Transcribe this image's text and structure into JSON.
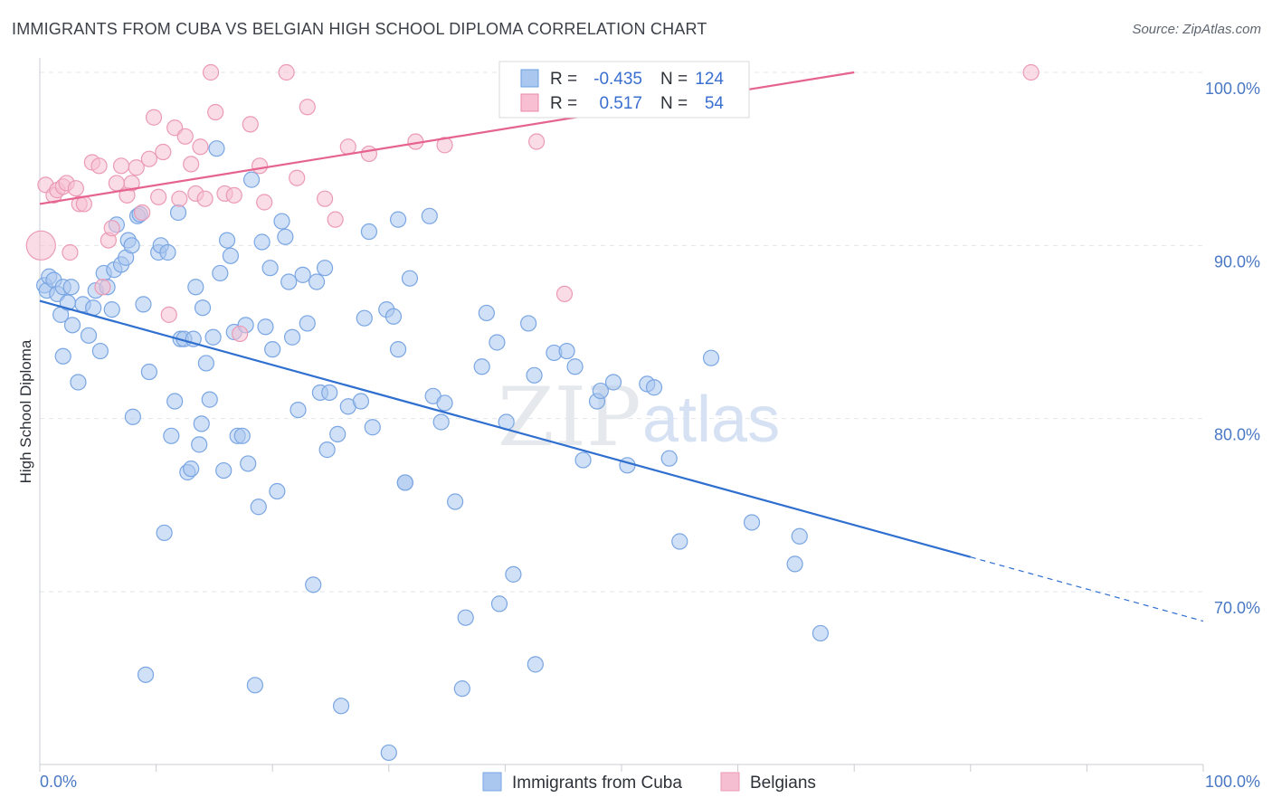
{
  "title": "IMMIGRANTS FROM CUBA VS BELGIAN HIGH SCHOOL DIPLOMA CORRELATION CHART",
  "source": "Source: ZipAtlas.com",
  "watermark": {
    "part1": "ZIP",
    "part2": "atlas"
  },
  "legend": {
    "r_label": "R =",
    "n_label": "N =",
    "rows": [
      {
        "r": "-0.435",
        "n": "124",
        "color": "#a9c7ef",
        "stroke": "#6a9fe0"
      },
      {
        "r": "0.517",
        "n": "54",
        "color": "#f7bfd1",
        "stroke": "#ea8aab"
      }
    ]
  },
  "bottom_legend": [
    "Immigrants from Cuba",
    "Belgians"
  ],
  "colors": {
    "blue": "#a9c7ef",
    "blue_stroke": "#7aa6e3",
    "blue_line": "#2f6fcf",
    "pink": "#f6bfd1",
    "pink_stroke": "#eb9ab6",
    "pink_line": "#e5638e",
    "grid": "#e3e6ea",
    "axis_label": "#4a78c4"
  },
  "chart_data": {
    "type": "scatter",
    "title": "IMMIGRANTS FROM CUBA VS BELGIAN HIGH SCHOOL DIPLOMA CORRELATION CHART",
    "xlabel": "",
    "ylabel": "High School Diploma",
    "xlim": [
      0,
      100
    ],
    "ylim": [
      60,
      102
    ],
    "x_ticks": [
      "0.0%",
      "100.0%"
    ],
    "y_ticks": [
      {
        "value": 100,
        "label": "100.0%"
      },
      {
        "value": 90,
        "label": "90.0%"
      },
      {
        "value": 80,
        "label": "80.0%"
      },
      {
        "value": 70,
        "label": "70.0%"
      }
    ],
    "grid": true,
    "legend_position": "top-center",
    "series": [
      {
        "name": "Immigrants from Cuba",
        "trend": {
          "x0": 0,
          "y0": 86.8,
          "x1": 80,
          "y1": 72.0,
          "dash_to_x": 100,
          "dash_to_y": 68.3
        },
        "points": [
          [
            0.4,
            87.7
          ],
          [
            0.6,
            87.4
          ],
          [
            0.8,
            88.2
          ],
          [
            1.2,
            88.0
          ],
          [
            1.5,
            87.2
          ],
          [
            1.8,
            86.0
          ],
          [
            2.0,
            87.6
          ],
          [
            2.4,
            86.7
          ],
          [
            2.8,
            85.4
          ],
          [
            2.7,
            87.6
          ],
          [
            3.3,
            82.1
          ],
          [
            3.7,
            86.6
          ],
          [
            4.2,
            84.8
          ],
          [
            4.6,
            86.4
          ],
          [
            4.8,
            87.4
          ],
          [
            5.2,
            83.9
          ],
          [
            5.5,
            88.4
          ],
          [
            5.8,
            87.6
          ],
          [
            6.2,
            86.3
          ],
          [
            6.6,
            91.2
          ],
          [
            6.4,
            88.6
          ],
          [
            7.0,
            88.9
          ],
          [
            7.4,
            89.3
          ],
          [
            7.6,
            90.3
          ],
          [
            8.0,
            80.1
          ],
          [
            7.9,
            90.0
          ],
          [
            8.4,
            91.7
          ],
          [
            8.9,
            86.6
          ],
          [
            8.6,
            91.8
          ],
          [
            9.4,
            82.7
          ],
          [
            10.2,
            89.6
          ],
          [
            10.4,
            90.0
          ],
          [
            10.7,
            73.4
          ],
          [
            11.0,
            89.6
          ],
          [
            11.3,
            79.0
          ],
          [
            11.6,
            81.0
          ],
          [
            11.9,
            91.9
          ],
          [
            12.1,
            84.6
          ],
          [
            12.4,
            84.6
          ],
          [
            12.7,
            76.9
          ],
          [
            13.0,
            77.1
          ],
          [
            13.2,
            84.6
          ],
          [
            13.4,
            87.6
          ],
          [
            13.7,
            78.5
          ],
          [
            14.0,
            86.4
          ],
          [
            14.3,
            83.2
          ],
          [
            14.6,
            81.1
          ],
          [
            14.9,
            84.7
          ],
          [
            9.1,
            65.2
          ],
          [
            15.2,
            95.6
          ],
          [
            15.5,
            88.4
          ],
          [
            15.8,
            77.0
          ],
          [
            16.1,
            90.3
          ],
          [
            16.4,
            89.4
          ],
          [
            16.7,
            85.0
          ],
          [
            17.0,
            79.0
          ],
          [
            17.4,
            79.0
          ],
          [
            17.7,
            85.4
          ],
          [
            17.9,
            77.4
          ],
          [
            18.2,
            93.8
          ],
          [
            18.5,
            64.6
          ],
          [
            18.8,
            74.9
          ],
          [
            19.1,
            90.2
          ],
          [
            19.4,
            85.3
          ],
          [
            19.8,
            88.7
          ],
          [
            20.0,
            84.0
          ],
          [
            20.4,
            75.8
          ],
          [
            20.8,
            91.4
          ],
          [
            21.1,
            90.5
          ],
          [
            21.4,
            87.9
          ],
          [
            21.7,
            84.7
          ],
          [
            22.2,
            80.5
          ],
          [
            22.6,
            88.3
          ],
          [
            23.0,
            85.5
          ],
          [
            23.5,
            70.4
          ],
          [
            23.8,
            87.9
          ],
          [
            24.1,
            81.5
          ],
          [
            24.5,
            88.7
          ],
          [
            24.7,
            78.2
          ],
          [
            24.9,
            81.5
          ],
          [
            25.6,
            79.1
          ],
          [
            25.9,
            63.4
          ],
          [
            26.5,
            80.7
          ],
          [
            27.6,
            81.0
          ],
          [
            27.9,
            85.8
          ],
          [
            28.3,
            90.8
          ],
          [
            28.6,
            79.5
          ],
          [
            29.8,
            86.3
          ],
          [
            30.0,
            60.7
          ],
          [
            30.4,
            85.9
          ],
          [
            30.8,
            84.0
          ],
          [
            30.8,
            91.5
          ],
          [
            31.4,
            76.3
          ],
          [
            31.8,
            88.1
          ],
          [
            33.5,
            91.7
          ],
          [
            33.8,
            81.3
          ],
          [
            34.5,
            79.8
          ],
          [
            34.8,
            80.9
          ],
          [
            35.7,
            75.2
          ],
          [
            36.3,
            64.4
          ],
          [
            36.6,
            68.5
          ],
          [
            38.0,
            83.0
          ],
          [
            38.4,
            86.1
          ],
          [
            39.3,
            84.4
          ],
          [
            39.5,
            69.3
          ],
          [
            40.1,
            79.8
          ],
          [
            40.7,
            71.0
          ],
          [
            42.0,
            85.5
          ],
          [
            42.5,
            82.5
          ],
          [
            42.6,
            65.8
          ],
          [
            44.2,
            83.8
          ],
          [
            45.3,
            83.9
          ],
          [
            46.0,
            83.0
          ],
          [
            46.7,
            77.6
          ],
          [
            47.9,
            81.0
          ],
          [
            48.2,
            81.6
          ],
          [
            49.3,
            82.1
          ],
          [
            50.5,
            77.3
          ],
          [
            52.2,
            82.0
          ],
          [
            52.8,
            81.8
          ],
          [
            54.1,
            77.7
          ],
          [
            55.0,
            72.9
          ],
          [
            57.7,
            83.5
          ],
          [
            61.2,
            74.0
          ],
          [
            64.9,
            71.6
          ],
          [
            65.3,
            73.2
          ],
          [
            67.1,
            67.6
          ],
          [
            31.4,
            76.3
          ],
          [
            13.9,
            79.7
          ],
          [
            2.0,
            83.6
          ]
        ]
      },
      {
        "name": "Belgians",
        "trend": {
          "x0": 0,
          "y0": 92.4,
          "x1": 70,
          "y1": 100.0
        },
        "points": [
          [
            0.1,
            90.0
          ],
          [
            0.5,
            93.5
          ],
          [
            1.2,
            92.9
          ],
          [
            1.5,
            93.2
          ],
          [
            2.0,
            93.4
          ],
          [
            2.3,
            93.6
          ],
          [
            2.6,
            89.6
          ],
          [
            3.1,
            93.3
          ],
          [
            3.4,
            92.4
          ],
          [
            3.8,
            92.4
          ],
          [
            4.5,
            94.8
          ],
          [
            5.1,
            94.6
          ],
          [
            5.4,
            87.6
          ],
          [
            5.9,
            90.3
          ],
          [
            6.2,
            91.0
          ],
          [
            6.6,
            93.6
          ],
          [
            7.0,
            94.6
          ],
          [
            7.5,
            92.9
          ],
          [
            7.9,
            93.6
          ],
          [
            8.3,
            94.5
          ],
          [
            8.8,
            91.9
          ],
          [
            9.4,
            95.0
          ],
          [
            9.8,
            97.4
          ],
          [
            10.2,
            92.8
          ],
          [
            10.6,
            95.4
          ],
          [
            11.1,
            86.0
          ],
          [
            11.6,
            96.8
          ],
          [
            12.0,
            92.7
          ],
          [
            12.5,
            96.3
          ],
          [
            13.0,
            94.7
          ],
          [
            13.4,
            93.0
          ],
          [
            13.8,
            95.7
          ],
          [
            14.2,
            92.7
          ],
          [
            14.7,
            100.0
          ],
          [
            15.1,
            97.7
          ],
          [
            15.9,
            93.0
          ],
          [
            16.7,
            92.9
          ],
          [
            17.2,
            84.9
          ],
          [
            18.1,
            97.0
          ],
          [
            18.9,
            94.6
          ],
          [
            19.3,
            92.5
          ],
          [
            21.2,
            100.0
          ],
          [
            22.1,
            93.9
          ],
          [
            23.0,
            98.0
          ],
          [
            24.5,
            92.7
          ],
          [
            25.4,
            91.5
          ],
          [
            26.5,
            95.7
          ],
          [
            28.3,
            95.3
          ],
          [
            32.3,
            96.0
          ],
          [
            34.8,
            95.8
          ],
          [
            42.7,
            96.0
          ],
          [
            54.3,
            100.0
          ],
          [
            85.2,
            100.0
          ],
          [
            45.1,
            87.2
          ]
        ]
      }
    ]
  }
}
